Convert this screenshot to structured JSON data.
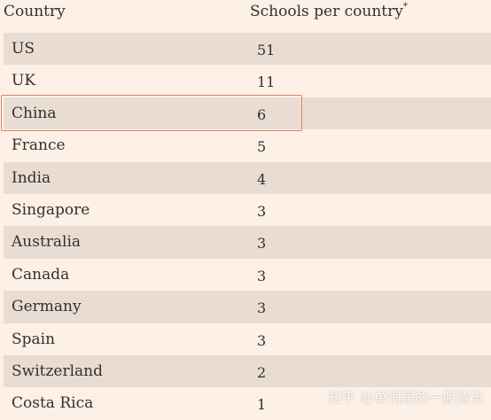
{
  "header": {
    "country_label": "Country",
    "schools_label": "Schools per country",
    "schools_note_marker": "*"
  },
  "rows": [
    {
      "country": "US",
      "count": "51"
    },
    {
      "country": "UK",
      "count": "11"
    },
    {
      "country": "China",
      "count": "6"
    },
    {
      "country": "France",
      "count": "5"
    },
    {
      "country": "India",
      "count": "4"
    },
    {
      "country": "Singapore",
      "count": "3"
    },
    {
      "country": "Australia",
      "count": "3"
    },
    {
      "country": "Canada",
      "count": "3"
    },
    {
      "country": "Germany",
      "count": "3"
    },
    {
      "country": "Spain",
      "count": "3"
    },
    {
      "country": "Switzerland",
      "count": "2"
    },
    {
      "country": "Costa Rica",
      "count": "1"
    }
  ],
  "highlighted_country": "China",
  "watermark": "知乎 @单词届的一股清流",
  "colors": {
    "background": "#fdf0e6",
    "row_shade": "#e9ddd3",
    "highlight_border": "#e0826a",
    "text": "#33302e"
  }
}
